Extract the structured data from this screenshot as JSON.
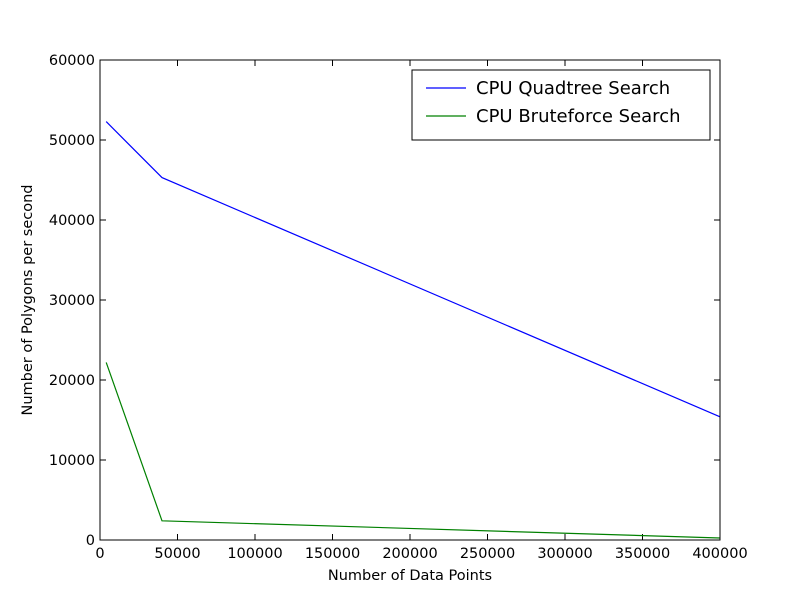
{
  "chart_data": {
    "type": "line",
    "title": "",
    "xlabel": "Number of Data Points",
    "ylabel": "Number of Polygons per second",
    "xlim": [
      0,
      400000
    ],
    "ylim": [
      0,
      60000
    ],
    "x_ticks": [
      0,
      50000,
      100000,
      150000,
      200000,
      250000,
      300000,
      350000,
      400000
    ],
    "y_ticks": [
      0,
      10000,
      20000,
      30000,
      40000,
      50000,
      60000
    ],
    "grid": false,
    "legend_position": "top-right",
    "series": [
      {
        "name": "CPU Quadtree Search",
        "color": "#0000ff",
        "x": [
          4000,
          40000,
          400000
        ],
        "y": [
          52300,
          45300,
          15400
        ]
      },
      {
        "name": "CPU Bruteforce Search",
        "color": "#008000",
        "x": [
          4000,
          40000,
          400000
        ],
        "y": [
          22200,
          2400,
          250
        ]
      }
    ]
  }
}
